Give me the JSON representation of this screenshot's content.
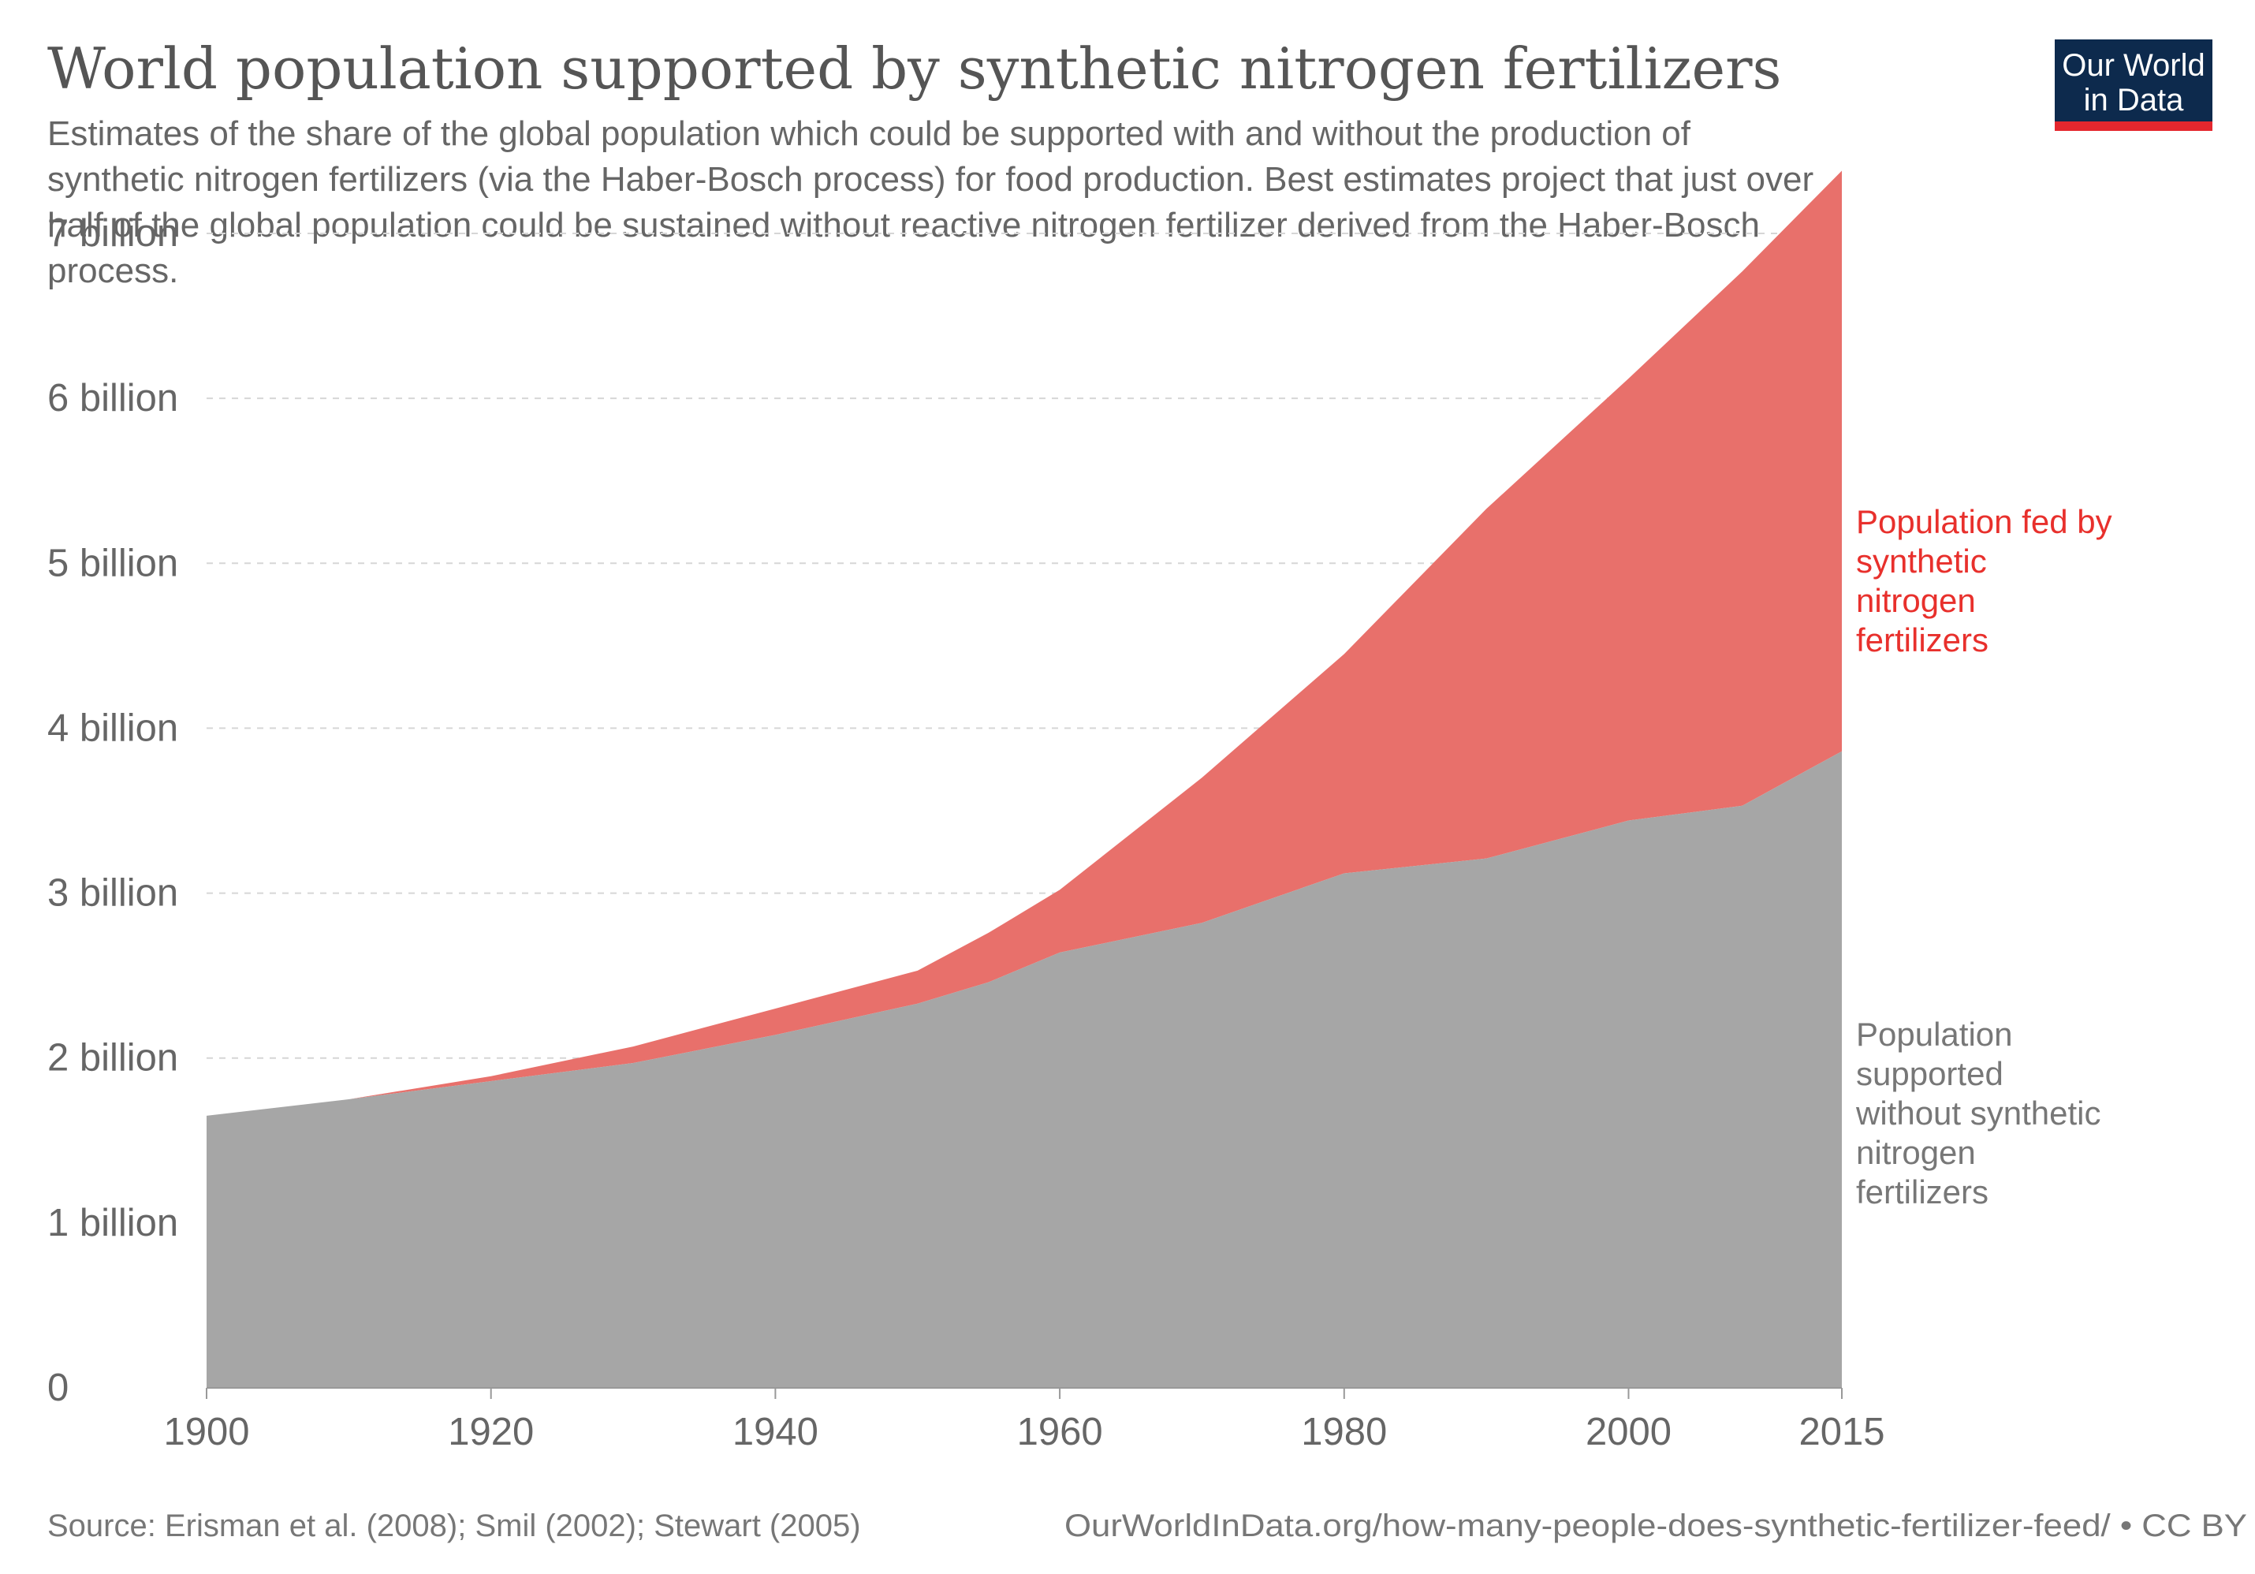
{
  "colors": {
    "fertilizer": "#E8706B",
    "no_fertilizer": "#A6A6A6",
    "fertilizer_text": "#E8302C",
    "no_fertilizer_text": "#777777",
    "logo_bg": "#0D2A4D",
    "logo_bar": "#E4272E"
  },
  "logo": {
    "line1": "Our World",
    "line2": "in Data"
  },
  "footer": {
    "source": "Source: Erisman et al. (2008); Smil (2002); Stewart (2005)",
    "url": "OurWorldInData.org/how-many-people-does-synthetic-fertilizer-feed/ • CC BY"
  },
  "chart_data": {
    "type": "area",
    "stacked": true,
    "title": "World population supported by synthetic nitrogen fertilizers",
    "subtitle": [
      "Estimates of the share of the global population which could be supported with and without the production of",
      "synthetic nitrogen fertilizers (via the Haber-Bosch process) for food production. Best estimates project that just over",
      "half of the global population could be sustained without reactive nitrogen fertilizer derived from the Haber-Bosch",
      "process."
    ],
    "x": [
      1900,
      1910,
      1920,
      1930,
      1940,
      1950,
      1955,
      1960,
      1970,
      1980,
      1990,
      2000,
      2008,
      2015
    ],
    "series": [
      {
        "name": "Population supported without synthetic nitrogen fertilizers",
        "label_lines": [
          "Population",
          "supported",
          "without synthetic",
          "nitrogen",
          "fertilizers"
        ],
        "values": [
          1.65,
          1.75,
          1.86,
          1.97,
          2.14,
          2.33,
          2.46,
          2.64,
          2.82,
          3.12,
          3.21,
          3.44,
          3.53,
          3.86
        ]
      },
      {
        "name": "Population fed by synthetic nitrogen fertilizers",
        "label_lines": [
          "Population fed by",
          "synthetic",
          "nitrogen",
          "fertilizers"
        ],
        "values": [
          0.0,
          0.0,
          0.03,
          0.1,
          0.16,
          0.2,
          0.3,
          0.38,
          0.88,
          1.33,
          2.12,
          2.68,
          3.24,
          3.52
        ]
      }
    ],
    "xticks": [
      1900,
      1920,
      1940,
      1960,
      1980,
      2000,
      2015
    ],
    "xtick_labels": [
      "1900",
      "1920",
      "1940",
      "1960",
      "1980",
      "2000",
      "2015"
    ],
    "yticks": [
      0,
      1,
      2,
      3,
      4,
      5,
      6,
      7
    ],
    "ytick_labels": [
      "0",
      "1 billion",
      "2 billion",
      "3 billion",
      "4 billion",
      "5 billion",
      "6 billion",
      "7 billion"
    ],
    "xlim": [
      1900,
      2015
    ],
    "ylim": [
      0,
      7
    ],
    "grid": true,
    "xlabel": "",
    "ylabel": ""
  }
}
